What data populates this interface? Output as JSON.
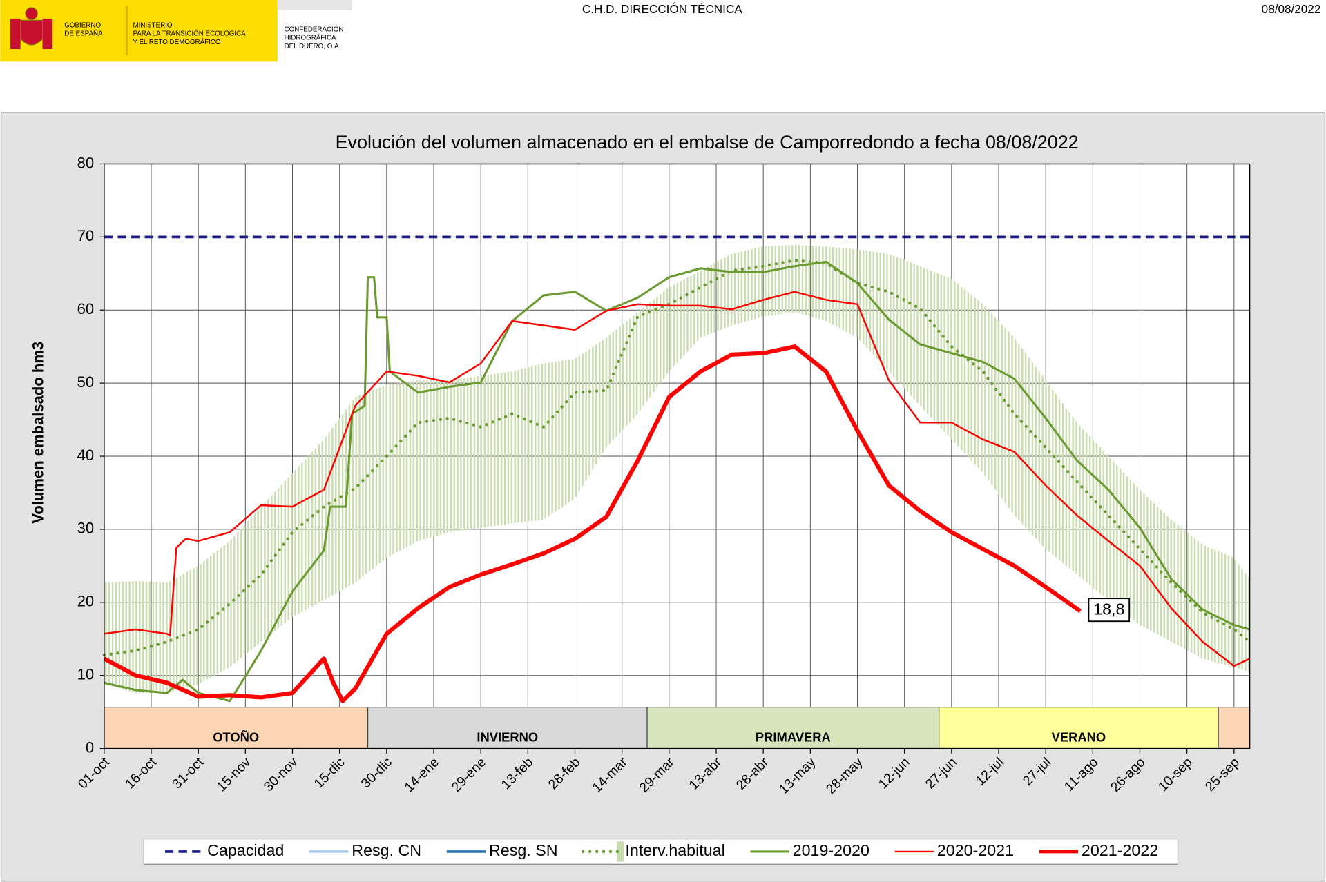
{
  "header": {
    "logo_government": [
      "GOBIERNO",
      "DE ESPAÑA"
    ],
    "logo_ministry": [
      "MINISTERIO",
      "PARA LA TRANSICIÓN ECOLÓGICA",
      "Y EL RETO DEMOGRÁFICO"
    ],
    "logo_confederation": [
      "CONFEDERACIÓN",
      "HIDROGRÁFICA",
      "DEL DUERO, O.A."
    ],
    "center": "C.H.D. DIRECCIÓN TÉCNICA",
    "date": "08/08/2022"
  },
  "chart_data": {
    "type": "line",
    "title": "Evolución del volumen almacenado en el embalse de Camporredondo a fecha 08/08/2022",
    "y_label": "Volumen embalsado hm3",
    "grid": true,
    "xlim": [
      0,
      365
    ],
    "ylim": [
      0,
      80
    ],
    "yticks": [
      0,
      10,
      20,
      30,
      40,
      50,
      60,
      70,
      80
    ],
    "xticks": [
      {
        "value": 0,
        "label": "01-oct"
      },
      {
        "value": 15,
        "label": "16-oct"
      },
      {
        "value": 30,
        "label": "31-oct"
      },
      {
        "value": 45,
        "label": "15-nov"
      },
      {
        "value": 60,
        "label": "30-nov"
      },
      {
        "value": 75,
        "label": "15-dic"
      },
      {
        "value": 90,
        "label": "30-dic"
      },
      {
        "value": 105,
        "label": "14-ene"
      },
      {
        "value": 120,
        "label": "29-ene"
      },
      {
        "value": 135,
        "label": "13-feb"
      },
      {
        "value": 150,
        "label": "28-feb"
      },
      {
        "value": 165,
        "label": "14-mar"
      },
      {
        "value": 180,
        "label": "29-mar"
      },
      {
        "value": 195,
        "label": "13-abr"
      },
      {
        "value": 210,
        "label": "28-abr"
      },
      {
        "value": 225,
        "label": "13-may"
      },
      {
        "value": 240,
        "label": "28-may"
      },
      {
        "value": 255,
        "label": "12-jun"
      },
      {
        "value": 270,
        "label": "27-jun"
      },
      {
        "value": 285,
        "label": "12-jul"
      },
      {
        "value": 300,
        "label": "27-jul"
      },
      {
        "value": 315,
        "label": "11-ago"
      },
      {
        "value": 330,
        "label": "26-ago"
      },
      {
        "value": 345,
        "label": "10-sep"
      },
      {
        "value": 360,
        "label": "25-sep"
      }
    ],
    "seasons": [
      {
        "label": "OTOÑO",
        "start": 0,
        "end": 84,
        "color": "#fcd5b5"
      },
      {
        "label": "INVIERNO",
        "start": 84,
        "end": 173,
        "color": "#d9d9d9"
      },
      {
        "label": "PRIMAVERA",
        "start": 173,
        "end": 266,
        "color": "#d7e4bc"
      },
      {
        "label": "VERANO",
        "start": 266,
        "end": 355,
        "color": "#ffff99"
      },
      {
        "label": null,
        "start": 355,
        "end": 365,
        "color": "#fcd5b5"
      }
    ],
    "series": [
      {
        "name": "Capacidad",
        "color": "#1c1c8c",
        "style": "dashed",
        "width": 3,
        "x": [
          0,
          365
        ],
        "values": [
          70,
          70
        ]
      },
      {
        "name": "Resg. CN",
        "color": "#a9c9e8",
        "style": "solid",
        "width": 3,
        "x": [],
        "values": []
      },
      {
        "name": "Resg. SN",
        "color": "#2e75b6",
        "style": "solid",
        "width": 3,
        "x": [],
        "values": []
      },
      {
        "name": "Interv.habitual",
        "color": "#6a9a30",
        "band_color": "#c9ddb0",
        "style": "dotted",
        "width": 3.5,
        "x": [
          0,
          10,
          20,
          30,
          40,
          50,
          60,
          70,
          80,
          90,
          100,
          110,
          120,
          130,
          140,
          150,
          160,
          170,
          180,
          190,
          200,
          210,
          220,
          230,
          240,
          250,
          260,
          270,
          280,
          290,
          300,
          310,
          320,
          330,
          340,
          350,
          360,
          365
        ],
        "values": [
          12.8,
          13.4,
          14.6,
          16.3,
          19.8,
          23.8,
          29.6,
          33.1,
          35.6,
          40.0,
          44.6,
          45.2,
          44.0,
          45.8,
          44.0,
          48.7,
          49.0,
          59.1,
          60.8,
          63.1,
          65.4,
          66.0,
          66.8,
          66.4,
          63.7,
          62.5,
          60.2,
          55.0,
          51.6,
          45.8,
          41.2,
          36.5,
          31.9,
          27.3,
          22.7,
          18.6,
          16.3,
          14.6
        ],
        "upper": [
          22.7,
          22.9,
          22.7,
          25.0,
          28.4,
          33.1,
          37.7,
          42.3,
          48.1,
          49.8,
          50.4,
          50.4,
          51.0,
          51.6,
          52.7,
          53.3,
          56.2,
          59.7,
          63.1,
          65.4,
          67.7,
          68.7,
          68.9,
          68.7,
          68.3,
          67.7,
          66.0,
          64.3,
          60.8,
          56.2,
          50.4,
          44.6,
          40.0,
          35.4,
          31.3,
          27.9,
          26.1,
          23.2
        ],
        "lower": [
          8.8,
          7.6,
          7.6,
          8.8,
          11.1,
          14.6,
          18.0,
          20.3,
          22.7,
          26.1,
          28.4,
          29.6,
          30.2,
          30.8,
          31.3,
          34.2,
          41.2,
          45.8,
          51.6,
          56.2,
          57.9,
          59.1,
          59.7,
          58.5,
          56.2,
          51.6,
          46.9,
          42.3,
          37.7,
          31.9,
          27.3,
          23.8,
          20.3,
          16.9,
          14.6,
          12.3,
          11.1,
          10.5
        ]
      },
      {
        "name": "2019-2020",
        "color": "#6a9a30",
        "style": "solid",
        "width": 2.5,
        "x": [
          0,
          10,
          20,
          25,
          30,
          40,
          45,
          50,
          60,
          70,
          72,
          77,
          79,
          83,
          84,
          86,
          87,
          90,
          91,
          100,
          110,
          120,
          130,
          140,
          150,
          160,
          170,
          180,
          190,
          200,
          210,
          220,
          230,
          240,
          250,
          260,
          270,
          280,
          290,
          300,
          310,
          320,
          330,
          340,
          350,
          360,
          365
        ],
        "values": [
          9.0,
          8.0,
          7.6,
          9.4,
          7.6,
          6.5,
          9.9,
          13.4,
          21.5,
          27.1,
          33.1,
          33.1,
          45.8,
          46.9,
          64.5,
          64.5,
          59.0,
          59.0,
          51.6,
          48.7,
          49.5,
          50.1,
          58.5,
          62.0,
          62.5,
          59.9,
          61.7,
          64.5,
          65.7,
          65.2,
          65.2,
          66.0,
          66.6,
          63.7,
          58.7,
          55.3,
          54.1,
          52.9,
          50.6,
          45.2,
          39.4,
          35.4,
          30.2,
          23.2,
          19.0,
          16.9,
          16.3
        ]
      },
      {
        "name": "2020-2021",
        "color": "#ff0000",
        "style": "solid",
        "width": 2,
        "x": [
          0,
          10,
          20,
          21,
          23,
          26,
          30,
          40,
          50,
          60,
          70,
          80,
          90,
          100,
          110,
          120,
          130,
          140,
          150,
          160,
          170,
          180,
          190,
          200,
          210,
          220,
          230,
          240,
          250,
          260,
          270,
          280,
          290,
          300,
          310,
          320,
          330,
          340,
          350,
          360,
          365
        ],
        "values": [
          15.7,
          16.3,
          15.7,
          15.5,
          27.5,
          28.7,
          28.4,
          29.6,
          33.3,
          33.1,
          35.4,
          46.9,
          51.6,
          51.0,
          50.1,
          52.7,
          58.5,
          57.9,
          57.3,
          59.9,
          60.8,
          60.6,
          60.6,
          60.1,
          61.4,
          62.5,
          61.4,
          60.8,
          50.4,
          44.6,
          44.6,
          42.3,
          40.6,
          36.0,
          31.9,
          28.4,
          25.0,
          19.2,
          14.6,
          11.3,
          12.3
        ]
      },
      {
        "name": "2021-2022",
        "color": "#ff0000",
        "style": "solid",
        "width": 5,
        "x": [
          0,
          10,
          20,
          30,
          40,
          50,
          60,
          70,
          73,
          76,
          80,
          90,
          100,
          110,
          120,
          130,
          140,
          150,
          160,
          170,
          180,
          190,
          200,
          210,
          220,
          230,
          240,
          250,
          260,
          270,
          280,
          290,
          300,
          311
        ],
        "values": [
          12.3,
          10.0,
          9.0,
          7.1,
          7.3,
          7.0,
          7.6,
          12.3,
          9.0,
          6.5,
          8.2,
          15.7,
          19.2,
          22.1,
          23.8,
          25.2,
          26.7,
          28.7,
          31.7,
          39.4,
          48.1,
          51.6,
          53.9,
          54.1,
          55.0,
          51.6,
          43.5,
          36.0,
          32.5,
          29.6,
          27.3,
          25.0,
          22.1,
          18.8
        ],
        "value_labels": [
          null,
          null,
          null,
          null,
          null,
          null,
          null,
          null,
          null,
          null,
          null,
          null,
          null,
          null,
          null,
          null,
          null,
          null,
          null,
          null,
          null,
          null,
          null,
          null,
          null,
          null,
          null,
          null,
          null,
          null,
          null,
          null,
          null,
          "18,8"
        ]
      }
    ]
  }
}
